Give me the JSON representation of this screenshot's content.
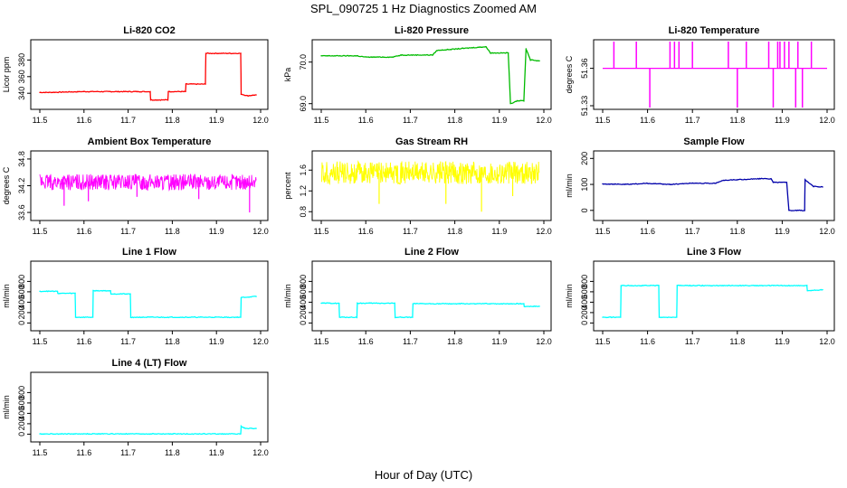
{
  "figure": {
    "title": "SPL_090725  1 Hz Diagnostics Zoomed AM",
    "xlabel": "Hour of Day (UTC)"
  },
  "chart_data": [
    {
      "type": "line",
      "title": "Li-820 CO2",
      "ylabel": "Licor ppm",
      "color": "#ff0000",
      "xlim": [
        11.5,
        12.0
      ],
      "xticks": [
        "11.5",
        "11.6",
        "11.7",
        "11.8",
        "11.9",
        "12.0"
      ],
      "ylim": [
        325,
        400
      ],
      "yticks": [
        340,
        360,
        380
      ],
      "x": [
        11.5,
        11.52,
        11.6,
        11.7,
        11.75,
        11.751,
        11.79,
        11.791,
        11.83,
        11.831,
        11.875,
        11.876,
        11.955,
        11.956,
        11.97,
        11.99
      ],
      "y": [
        341,
        341,
        342,
        342,
        342,
        332,
        332,
        342,
        342,
        351,
        351,
        388,
        388,
        339,
        337,
        338
      ]
    },
    {
      "type": "line",
      "title": "Li-820 Pressure",
      "ylabel": "kPa",
      "color": "#00bb00",
      "xlim": [
        11.5,
        12.0
      ],
      "xticks": [
        "11.5",
        "11.6",
        "11.7",
        "11.8",
        "11.9",
        "12.0"
      ],
      "ylim": [
        68.95,
        70.45
      ],
      "yticks": [
        "69.0",
        "70.0"
      ],
      "x": [
        11.5,
        11.58,
        11.6,
        11.66,
        11.68,
        11.75,
        11.76,
        11.82,
        11.87,
        11.88,
        11.92,
        11.925,
        11.94,
        11.955,
        11.96,
        11.97,
        11.99
      ],
      "y": [
        70.15,
        70.15,
        70.12,
        70.12,
        70.17,
        70.17,
        70.28,
        70.33,
        70.37,
        70.22,
        70.22,
        69.0,
        69.07,
        69.07,
        70.32,
        70.05,
        70.03
      ]
    },
    {
      "type": "line",
      "title": "Li-820 Temperature",
      "ylabel": "degrees C",
      "color": "#ff00ff",
      "xlim": [
        11.5,
        12.0
      ],
      "xticks": [
        "11.5",
        "11.6",
        "11.7",
        "11.8",
        "11.9",
        "12.0"
      ],
      "ylim": [
        51.33,
        51.38
      ],
      "yticks": [
        "51.33",
        "51.36"
      ],
      "baseline": 51.36,
      "spikes_up": [
        11.525,
        11.575,
        11.65,
        11.66,
        11.67,
        11.7,
        11.78,
        11.82,
        11.87,
        11.89,
        11.895,
        11.905,
        11.915,
        11.935,
        11.965
      ],
      "spikes_down": [
        11.605,
        11.8,
        11.88,
        11.93,
        11.945
      ]
    },
    {
      "type": "line",
      "title": "Ambient Box Temperature",
      "ylabel": "degrees C",
      "color": "#ff00ff",
      "xlim": [
        11.5,
        12.0
      ],
      "xticks": [
        "11.5",
        "11.6",
        "11.7",
        "11.8",
        "11.9",
        "12.0"
      ],
      "ylim": [
        33.5,
        34.9
      ],
      "yticks": [
        "33.6",
        "34.2",
        "34.8"
      ],
      "band_center": 34.28,
      "band_amplitude": 0.18,
      "dips": [
        [
          11.555,
          33.75
        ],
        [
          11.61,
          33.85
        ],
        [
          11.72,
          33.95
        ],
        [
          11.86,
          33.9
        ],
        [
          11.975,
          33.6
        ]
      ]
    },
    {
      "type": "line",
      "title": "Gas Stream RH",
      "ylabel": "percent",
      "color": "#ffff00",
      "xlim": [
        11.5,
        12.0
      ],
      "xticks": [
        "11.5",
        "11.6",
        "11.7",
        "11.8",
        "11.9",
        "12.0"
      ],
      "ylim": [
        0.7,
        1.9
      ],
      "yticks": [
        "0.8",
        "1.2",
        "1.6"
      ],
      "band_center": 1.55,
      "band_amplitude": 0.22,
      "dips": [
        [
          11.63,
          0.95
        ],
        [
          11.78,
          0.95
        ],
        [
          11.86,
          0.8
        ],
        [
          11.93,
          1.1
        ]
      ]
    },
    {
      "type": "line",
      "title": "Sample Flow",
      "ylabel": "ml/min",
      "color": "#0000aa",
      "xlim": [
        11.5,
        12.0
      ],
      "xticks": [
        "11.5",
        "11.6",
        "11.7",
        "11.8",
        "11.9",
        "12.0"
      ],
      "ylim": [
        -25,
        215
      ],
      "yticks": [
        0,
        100,
        200
      ],
      "x": [
        11.5,
        11.55,
        11.6,
        11.65,
        11.7,
        11.75,
        11.77,
        11.8,
        11.85,
        11.875,
        11.88,
        11.91,
        11.915,
        11.95,
        11.951,
        11.97,
        11.99
      ],
      "y": [
        102,
        100,
        104,
        100,
        105,
        104,
        116,
        118,
        122,
        122,
        108,
        108,
        0,
        0,
        117,
        92,
        90
      ]
    },
    {
      "type": "line",
      "title": "Line 1 Flow",
      "ylabel": "ml/min",
      "color": "#00ffff",
      "xlim": [
        11.5,
        12.0
      ],
      "xticks": [
        "11.5",
        "11.6",
        "11.7",
        "11.8",
        "11.9",
        "12.0"
      ],
      "ylim": [
        -80,
        1120
      ],
      "yticks": [
        0,
        200,
        400,
        600,
        800
      ],
      "x": [
        11.5,
        11.54,
        11.541,
        11.58,
        11.581,
        11.62,
        11.621,
        11.66,
        11.661,
        11.705,
        11.706,
        11.955,
        11.956,
        11.99
      ],
      "y": [
        610,
        610,
        570,
        570,
        110,
        110,
        620,
        620,
        560,
        560,
        110,
        110,
        490,
        510
      ]
    },
    {
      "type": "line",
      "title": "Line 2 Flow",
      "ylabel": "ml/min",
      "color": "#00ffff",
      "xlim": [
        11.5,
        12.0
      ],
      "xticks": [
        "11.5",
        "11.6",
        "11.7",
        "11.8",
        "11.9",
        "12.0"
      ],
      "ylim": [
        -80,
        1120
      ],
      "yticks": [
        0,
        200,
        400,
        600,
        800
      ],
      "x": [
        11.5,
        11.54,
        11.541,
        11.58,
        11.581,
        11.665,
        11.666,
        11.705,
        11.706,
        11.955,
        11.956,
        11.99
      ],
      "y": [
        380,
        380,
        110,
        110,
        380,
        380,
        110,
        110,
        370,
        370,
        320,
        320
      ]
    },
    {
      "type": "line",
      "title": "Line 3 Flow",
      "ylabel": "ml/min",
      "color": "#00ffff",
      "xlim": [
        11.5,
        12.0
      ],
      "xticks": [
        "11.5",
        "11.6",
        "11.7",
        "11.8",
        "11.9",
        "12.0"
      ],
      "ylim": [
        -80,
        1120
      ],
      "yticks": [
        0,
        200,
        400,
        600,
        800
      ],
      "x": [
        11.5,
        11.54,
        11.541,
        11.625,
        11.626,
        11.665,
        11.666,
        11.955,
        11.956,
        11.99
      ],
      "y": [
        110,
        110,
        720,
        720,
        110,
        110,
        720,
        720,
        620,
        640
      ]
    },
    {
      "type": "line",
      "title": "Line 4 (LT) Flow",
      "ylabel": "ml/min",
      "color": "#00ffff",
      "xlim": [
        11.5,
        12.0
      ],
      "xticks": [
        "11.5",
        "11.6",
        "11.7",
        "11.8",
        "11.9",
        "12.0"
      ],
      "ylim": [
        -80,
        1120
      ],
      "yticks": [
        0,
        200,
        400,
        600,
        800
      ],
      "x": [
        11.5,
        11.955,
        11.956,
        11.965,
        11.99
      ],
      "y": [
        5,
        5,
        150,
        110,
        110
      ]
    }
  ]
}
